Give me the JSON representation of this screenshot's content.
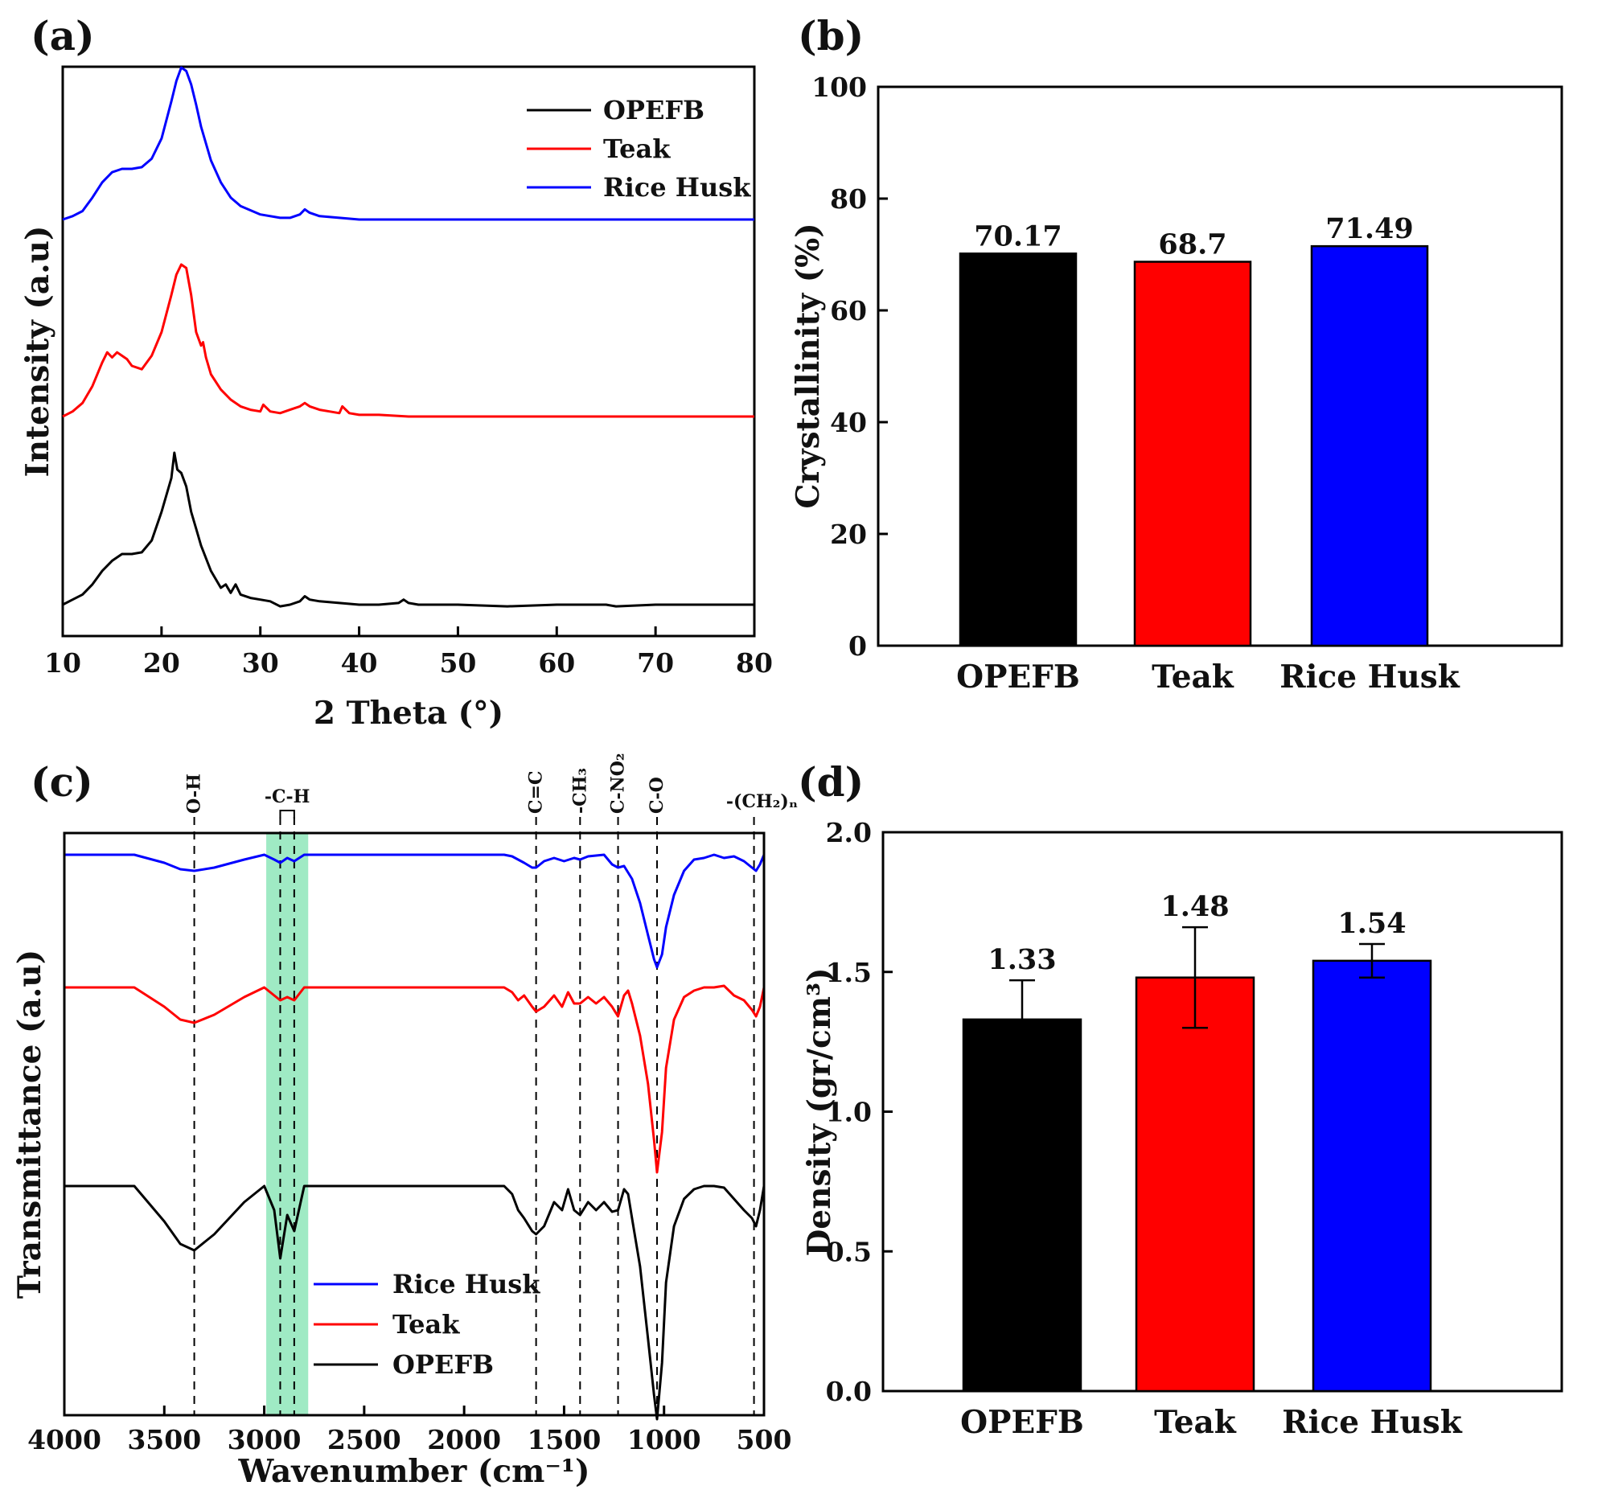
{
  "colors": {
    "OPEFB": "#000000",
    "Teak": "#ff0000",
    "Rice Husk": "#0000ff",
    "band": "#7fe3b0"
  },
  "chart_data": [
    {
      "panel": "(a)",
      "type": "line",
      "xlabel": "2 Theta (°)",
      "ylabel": "Intensity (a.u)",
      "xlim": [
        10,
        80
      ],
      "xticks": [
        10,
        20,
        30,
        40,
        50,
        60,
        70,
        80
      ],
      "legend": [
        "OPEFB",
        "Teak",
        "Rice Husk"
      ],
      "legend_position": "top-right",
      "series": [
        {
          "name": "Rice Husk",
          "offset": 2.0,
          "x": [
            10,
            11,
            12,
            13,
            14,
            15,
            16,
            17,
            18,
            19,
            20,
            21,
            21.5,
            22,
            22.5,
            23,
            23.5,
            24,
            25,
            26,
            27,
            28,
            30,
            32,
            33,
            34,
            34.5,
            35,
            36,
            38,
            40,
            45,
            50,
            60,
            70,
            80
          ],
          "y": [
            0,
            0.02,
            0.05,
            0.13,
            0.22,
            0.28,
            0.3,
            0.3,
            0.31,
            0.36,
            0.48,
            0.7,
            0.82,
            0.9,
            0.88,
            0.8,
            0.68,
            0.55,
            0.35,
            0.22,
            0.13,
            0.08,
            0.03,
            0.01,
            0.01,
            0.03,
            0.06,
            0.04,
            0.02,
            0.01,
            0.0,
            0.0,
            0.0,
            0.0,
            0.0,
            0.0
          ]
        },
        {
          "name": "Teak",
          "offset": 1.0,
          "x": [
            10,
            11,
            12,
            13,
            14,
            14.5,
            15,
            15.5,
            16,
            16.5,
            17,
            18,
            19,
            20,
            21,
            21.5,
            22,
            22.5,
            23,
            23.5,
            24,
            24.2,
            24.5,
            25,
            26,
            27,
            28,
            29,
            30,
            30.3,
            31,
            32,
            33,
            34,
            34.5,
            35,
            36,
            37,
            38,
            38.3,
            39,
            40,
            42,
            45,
            50,
            60,
            70,
            80
          ],
          "y": [
            0,
            0.03,
            0.08,
            0.18,
            0.32,
            0.38,
            0.35,
            0.38,
            0.36,
            0.34,
            0.3,
            0.28,
            0.36,
            0.5,
            0.72,
            0.84,
            0.9,
            0.88,
            0.72,
            0.5,
            0.42,
            0.44,
            0.35,
            0.25,
            0.16,
            0.1,
            0.06,
            0.04,
            0.03,
            0.07,
            0.03,
            0.02,
            0.04,
            0.06,
            0.08,
            0.06,
            0.04,
            0.03,
            0.02,
            0.06,
            0.02,
            0.01,
            0.01,
            0.0,
            0.0,
            0.0,
            0.0,
            0.0
          ]
        },
        {
          "name": "OPEFB",
          "offset": 0.0,
          "x": [
            10,
            11,
            12,
            13,
            14,
            15,
            16,
            17,
            18,
            19,
            20,
            21,
            21.3,
            21.6,
            22,
            22.5,
            23,
            23.5,
            24,
            25,
            26,
            26.5,
            27,
            27.5,
            28,
            29,
            30,
            31,
            32,
            33,
            34,
            34.5,
            35,
            36,
            38,
            40,
            42,
            44,
            44.5,
            45,
            46,
            50,
            55,
            60,
            65,
            66,
            70,
            75,
            80
          ],
          "y": [
            0,
            0.03,
            0.06,
            0.12,
            0.2,
            0.26,
            0.3,
            0.3,
            0.31,
            0.38,
            0.55,
            0.75,
            0.9,
            0.8,
            0.78,
            0.7,
            0.55,
            0.45,
            0.35,
            0.2,
            0.1,
            0.12,
            0.07,
            0.12,
            0.06,
            0.04,
            0.03,
            0.02,
            -0.01,
            0.0,
            0.02,
            0.05,
            0.03,
            0.02,
            0.01,
            0.0,
            0.0,
            0.01,
            0.03,
            0.01,
            0.0,
            0.0,
            -0.01,
            0.0,
            0.0,
            -0.01,
            0.0,
            0.0,
            0.0
          ]
        }
      ]
    },
    {
      "panel": "(b)",
      "type": "bar",
      "categories": [
        "OPEFB",
        "Teak",
        "Rice Husk"
      ],
      "values": [
        70.17,
        68.7,
        71.49
      ],
      "value_labels": [
        "70.17",
        "68.7",
        "71.49"
      ],
      "ylabel": "Crystallinity (%)",
      "ylim": [
        0,
        100
      ],
      "yticks": [
        0,
        20,
        40,
        60,
        80,
        100
      ]
    },
    {
      "panel": "(c)",
      "type": "line",
      "xlabel": "Wavenumber (cm⁻¹)",
      "ylabel": "Transmittance (a.u)",
      "xlim": [
        4000,
        500
      ],
      "xticks": [
        4000,
        3500,
        3000,
        2500,
        2000,
        1500,
        1000,
        500
      ],
      "band_range": [
        2990,
        2780
      ],
      "vlines": [
        {
          "x": 3350,
          "label": "O-H"
        },
        {
          "x": 2920,
          "label": "-C-H"
        },
        {
          "x": 2850,
          "label": ""
        },
        {
          "x": 1640,
          "label": "C=C"
        },
        {
          "x": 1420,
          "label": "-CH₃"
        },
        {
          "x": 1230,
          "label": "C-NO₂"
        },
        {
          "x": 1035,
          "label": "C-O"
        },
        {
          "x": 550,
          "label": "-(CH₂)ₙ"
        }
      ],
      "legend": [
        "Rice Husk",
        "Teak",
        "OPEFB"
      ],
      "legend_position": "bottom-center",
      "series": [
        {
          "name": "Rice Husk",
          "offset": 0.0,
          "x": [
            4000,
            3800,
            3650,
            3500,
            3420,
            3350,
            3250,
            3100,
            3000,
            2950,
            2920,
            2885,
            2850,
            2800,
            2700,
            2400,
            2000,
            1800,
            1760,
            1700,
            1660,
            1640,
            1600,
            1550,
            1500,
            1450,
            1420,
            1380,
            1300,
            1260,
            1230,
            1200,
            1160,
            1120,
            1080,
            1050,
            1035,
            1010,
            990,
            950,
            900,
            850,
            800,
            750,
            700,
            650,
            600,
            560,
            540,
            520,
            500
          ],
          "y": [
            0,
            0,
            0,
            -0.05,
            -0.09,
            -0.1,
            -0.08,
            -0.03,
            0,
            -0.03,
            -0.05,
            -0.02,
            -0.04,
            0,
            0,
            0,
            0,
            0,
            -0.01,
            -0.05,
            -0.08,
            -0.08,
            -0.04,
            -0.02,
            -0.04,
            -0.02,
            -0.03,
            -0.01,
            0,
            -0.06,
            -0.08,
            -0.07,
            -0.15,
            -0.3,
            -0.5,
            -0.65,
            -0.7,
            -0.62,
            -0.45,
            -0.25,
            -0.1,
            -0.03,
            -0.02,
            0,
            -0.02,
            -0.01,
            -0.04,
            -0.08,
            -0.1,
            -0.06,
            0
          ]
        },
        {
          "name": "Teak",
          "offset": 1.0,
          "x": [
            4000,
            3800,
            3650,
            3500,
            3420,
            3350,
            3250,
            3100,
            3000,
            2950,
            2920,
            2885,
            2850,
            2800,
            2700,
            2400,
            2000,
            1800,
            1760,
            1730,
            1700,
            1660,
            1640,
            1600,
            1550,
            1510,
            1480,
            1450,
            1420,
            1380,
            1340,
            1300,
            1260,
            1230,
            1200,
            1180,
            1160,
            1120,
            1080,
            1050,
            1035,
            1010,
            990,
            950,
            900,
            850,
            800,
            750,
            700,
            650,
            600,
            560,
            540,
            520,
            500
          ],
          "y": [
            0,
            0,
            0,
            -0.12,
            -0.2,
            -0.22,
            -0.17,
            -0.06,
            0,
            -0.05,
            -0.08,
            -0.06,
            -0.08,
            0,
            0,
            0,
            0,
            0,
            -0.03,
            -0.08,
            -0.05,
            -0.12,
            -0.15,
            -0.12,
            -0.05,
            -0.12,
            -0.03,
            -0.1,
            -0.1,
            -0.06,
            -0.1,
            -0.06,
            -0.12,
            -0.18,
            -0.05,
            -0.02,
            -0.1,
            -0.3,
            -0.6,
            -0.95,
            -1.15,
            -0.9,
            -0.5,
            -0.2,
            -0.06,
            -0.02,
            0,
            0,
            0.01,
            -0.05,
            -0.08,
            -0.14,
            -0.18,
            -0.12,
            0
          ]
        },
        {
          "name": "OPEFB",
          "offset": 2.0,
          "x": [
            4000,
            3800,
            3650,
            3500,
            3420,
            3350,
            3250,
            3100,
            3000,
            2950,
            2920,
            2885,
            2850,
            2800,
            2700,
            2400,
            2000,
            1800,
            1760,
            1730,
            1700,
            1660,
            1640,
            1600,
            1550,
            1510,
            1480,
            1450,
            1420,
            1380,
            1340,
            1300,
            1260,
            1230,
            1200,
            1180,
            1160,
            1120,
            1080,
            1050,
            1035,
            1010,
            990,
            950,
            900,
            850,
            800,
            750,
            700,
            650,
            600,
            560,
            540,
            520,
            500
          ],
          "y": [
            0,
            0,
            0,
            -0.22,
            -0.36,
            -0.4,
            -0.3,
            -0.1,
            0,
            -0.15,
            -0.45,
            -0.18,
            -0.28,
            0,
            0,
            0,
            0,
            0,
            -0.05,
            -0.15,
            -0.2,
            -0.28,
            -0.3,
            -0.25,
            -0.1,
            -0.15,
            -0.02,
            -0.15,
            -0.18,
            -0.1,
            -0.15,
            -0.1,
            -0.16,
            -0.15,
            -0.02,
            -0.05,
            -0.2,
            -0.5,
            -0.95,
            -1.3,
            -1.45,
            -1.1,
            -0.6,
            -0.25,
            -0.08,
            -0.02,
            0,
            0,
            -0.01,
            -0.08,
            -0.15,
            -0.2,
            -0.25,
            -0.15,
            0
          ]
        }
      ]
    },
    {
      "panel": "(d)",
      "type": "bar",
      "categories": [
        "OPEFB",
        "Teak",
        "Rice Husk"
      ],
      "values": [
        1.33,
        1.48,
        1.54
      ],
      "value_labels": [
        "1.33",
        "1.48",
        "1.54"
      ],
      "errors": [
        0.14,
        0.18,
        0.06
      ],
      "ylabel": "Density (gr/cm³)",
      "ylim": [
        0,
        2.0
      ],
      "yticks": [
        0.0,
        0.5,
        1.0,
        1.5,
        2.0
      ],
      "ytick_labels": [
        "0.0",
        "0.5",
        "1.0",
        "1.5",
        "2.0"
      ]
    }
  ]
}
